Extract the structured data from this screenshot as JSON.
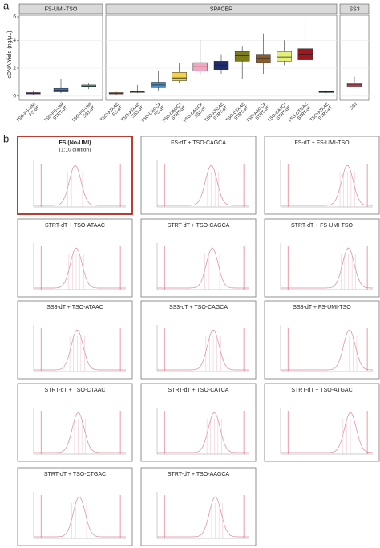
{
  "panel_a": {
    "label": "a"
  },
  "chart_data": {
    "type": "box",
    "ylabel": "cDNA Yield (ng/µL)",
    "ylim": [
      -0.3,
      5.8
    ],
    "yticks": [
      0,
      2,
      4,
      6
    ],
    "panels": [
      {
        "title": "FS-UMI-TSO",
        "categories": [
          [
            "TSO-FS-UMI",
            "FS-dT"
          ],
          [
            "TSO-FS-UMI",
            "STRT-dT"
          ],
          [
            "TSO-FS-UMI",
            "SS3-dT"
          ]
        ],
        "colors": [
          "#7b3f9e",
          "#3c6fb4",
          "#2ca58d"
        ],
        "boxes": [
          {
            "min": 0.1,
            "q1": 0.15,
            "median": 0.2,
            "q3": 0.25,
            "max": 0.4
          },
          {
            "min": 0.2,
            "q1": 0.3,
            "median": 0.4,
            "q3": 0.55,
            "max": 1.2
          },
          {
            "min": 0.5,
            "q1": 0.65,
            "median": 0.7,
            "q3": 0.8,
            "max": 0.9
          }
        ]
      },
      {
        "title": "SPACER",
        "categories": [
          [
            "TSO-ATAAC",
            "FS-dT"
          ],
          [
            "TSO-ATAAC",
            "SS3-dT"
          ],
          [
            "TSO-CAGCA",
            "FS-dT"
          ],
          [
            "TSO-CAGCA",
            "STRT-dT"
          ],
          [
            "TSO-CAGCA",
            "SS3-dT"
          ],
          [
            "TSO-ATGAC",
            "STRT-dT"
          ],
          [
            "TSO-CTAAC",
            "STRT-dT"
          ],
          [
            "TSO-AAGCA",
            "STRT-dT"
          ],
          [
            "TSO-CATCA",
            "STRT-dT"
          ],
          [
            "TSO-CTGAC",
            "STRT-dT"
          ],
          [
            "TSO-ATAAC",
            "STRT-dT"
          ]
        ],
        "colors": [
          "#d7843a",
          "#d9c9a3",
          "#4a90c8",
          "#f2d24b",
          "#f4a6c1",
          "#1f2b6b",
          "#7d7c1a",
          "#8a5a2b",
          "#e5f07a",
          "#a0151e",
          "#2e8b57"
        ],
        "boxes": [
          {
            "min": 0.1,
            "q1": 0.15,
            "median": 0.2,
            "q3": 0.25,
            "max": 0.3
          },
          {
            "min": 0.2,
            "q1": 0.25,
            "median": 0.3,
            "q3": 0.35,
            "max": 0.8
          },
          {
            "min": 0.4,
            "q1": 0.6,
            "median": 0.8,
            "q3": 1.0,
            "max": 1.8
          },
          {
            "min": 0.9,
            "q1": 1.1,
            "median": 1.3,
            "q3": 1.7,
            "max": 2.4
          },
          {
            "min": 1.5,
            "q1": 1.8,
            "median": 2.1,
            "q3": 2.4,
            "max": 4.0
          },
          {
            "min": 1.6,
            "q1": 1.9,
            "median": 2.2,
            "q3": 2.5,
            "max": 3.0
          },
          {
            "min": 1.2,
            "q1": 2.5,
            "median": 2.9,
            "q3": 3.2,
            "max": 3.6
          },
          {
            "min": 1.6,
            "q1": 2.4,
            "median": 2.7,
            "q3": 3.0,
            "max": 4.5
          },
          {
            "min": 2.2,
            "q1": 2.5,
            "median": 2.8,
            "q3": 3.2,
            "max": 4.0
          },
          {
            "min": 2.3,
            "q1": 2.6,
            "median": 3.0,
            "q3": 3.4,
            "max": 5.4
          },
          {
            "min": 0.2,
            "q1": 0.25,
            "median": 0.3,
            "q3": 0.32,
            "max": 0.4
          }
        ]
      },
      {
        "title": "SS3",
        "categories": [
          [
            "SS3"
          ]
        ],
        "colors": [
          "#e0455a"
        ],
        "boxes": [
          {
            "min": 0.6,
            "q1": 0.7,
            "median": 0.8,
            "q3": 0.95,
            "max": 1.4
          }
        ]
      }
    ]
  },
  "panel_b": {
    "label": "b",
    "traces": [
      {
        "title": "FS (No-UMI)",
        "subtitle": "(1:10 dilution)"
      },
      {
        "title": "FS-dT + TSO-CAGCA"
      },
      {
        "title": "FS-dT + FS-UMI-TSO"
      },
      {
        "title": "STRT-dT + TSO-ATAAC"
      },
      {
        "title": "STRT-dT + TSO-CAGCA"
      },
      {
        "title": "STRT-dT + FS-UMI-TSO"
      },
      {
        "title": "SS3-dT + TSO-ATAAC"
      },
      {
        "title": "SS3-dT + TSO-CAGCA"
      },
      {
        "title": "SS3-dT + FS-UMI-TSO"
      },
      {
        "title": "STRT-dT + TSO-CTAAC"
      },
      {
        "title": "STRT-dT + TSO-CATCA"
      },
      {
        "title": "STRT-dT + TSO-ATGAC"
      },
      {
        "title": "STRT-dT + TSO-CTGAC"
      },
      {
        "title": "STRT-dT + TSO-AAGCA"
      }
    ]
  }
}
